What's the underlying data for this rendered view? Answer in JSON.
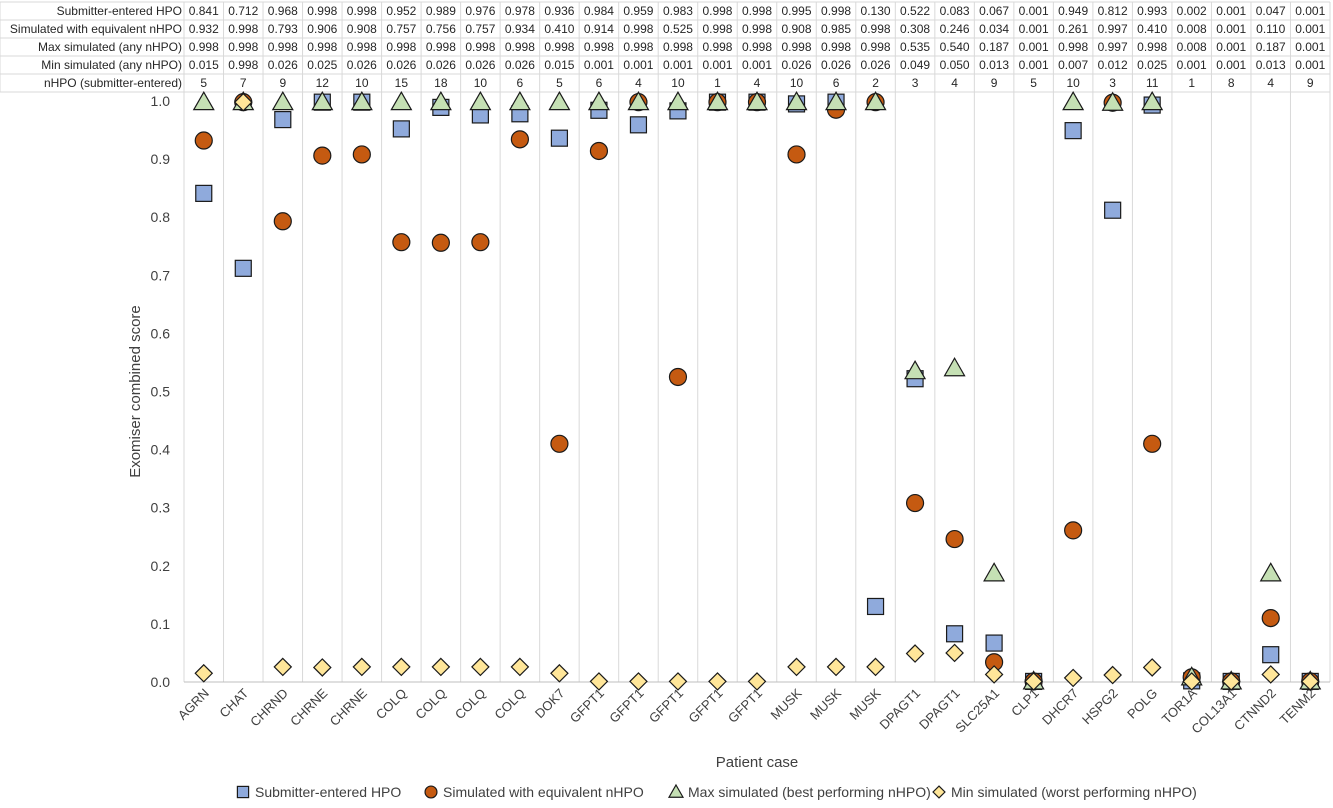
{
  "chart_data": {
    "type": "scatter",
    "xlabel": "Patient case",
    "ylabel": "Exomiser combined score",
    "ylim": [
      0,
      1
    ],
    "yticks": [
      "0.0",
      "0.1",
      "0.2",
      "0.3",
      "0.4",
      "0.5",
      "0.6",
      "0.7",
      "0.8",
      "0.9",
      "1.0"
    ],
    "grid": "vertical gridlines between categories, rows of data table",
    "legend_placement": "bottom",
    "categories": [
      "AGRN",
      "CHAT",
      "CHRND",
      "CHRNE",
      "CHRNE",
      "COLQ",
      "COLQ",
      "COLQ",
      "COLQ",
      "DOK7",
      "GFPT1",
      "GFPT1",
      "GFPT1",
      "GFPT1",
      "GFPT1",
      "MUSK",
      "MUSK",
      "MUSK",
      "DPAGT1",
      "DPAGT1",
      "SLC25A1",
      "CLP1",
      "DHCR7",
      "HSPG2",
      "POLG",
      "TOR1A",
      "COL13A1",
      "CTNND2",
      "TENM2"
    ],
    "series": [
      {
        "name": "Submitter-entered HPO",
        "legend_label": "Submitter-entered HPO",
        "marker": "square",
        "color": "#8faadc",
        "values": [
          "0.841",
          "0.712",
          "0.968",
          "0.998",
          "0.998",
          "0.952",
          "0.989",
          "0.976",
          "0.978",
          "0.936",
          "0.984",
          "0.959",
          "0.983",
          "0.998",
          "0.998",
          "0.995",
          "0.998",
          "0.130",
          "0.522",
          "0.083",
          "0.067",
          "0.001",
          "0.949",
          "0.812",
          "0.993",
          "0.002",
          "0.001",
          "0.047",
          "0.001"
        ]
      },
      {
        "name": "Simulated with equivalent nHPO",
        "legend_label": "Simulated with equivalent nHPO",
        "marker": "circle",
        "color": "#c55a11",
        "values": [
          "0.932",
          "0.998",
          "0.793",
          "0.906",
          "0.908",
          "0.757",
          "0.756",
          "0.757",
          "0.934",
          "0.410",
          "0.914",
          "0.998",
          "0.525",
          "0.998",
          "0.998",
          "0.908",
          "0.985",
          "0.998",
          "0.308",
          "0.246",
          "0.034",
          "0.001",
          "0.261",
          "0.997",
          "0.410",
          "0.008",
          "0.001",
          "0.110",
          "0.001"
        ]
      },
      {
        "name": "Max simulated (any nHPO)",
        "legend_label": "Max simulated (best performing nHPO)",
        "marker": "triangle",
        "color": "#c5e0b4",
        "values": [
          "0.998",
          "0.998",
          "0.998",
          "0.998",
          "0.998",
          "0.998",
          "0.998",
          "0.998",
          "0.998",
          "0.998",
          "0.998",
          "0.998",
          "0.998",
          "0.998",
          "0.998",
          "0.998",
          "0.998",
          "0.998",
          "0.535",
          "0.540",
          "0.187",
          "0.001",
          "0.998",
          "0.997",
          "0.998",
          "0.008",
          "0.001",
          "0.187",
          "0.001"
        ]
      },
      {
        "name": "Min simulated (any nHPO)",
        "legend_label": "Min simulated (worst performing nHPO)",
        "marker": "diamond",
        "color": "#ffe699",
        "values": [
          "0.015",
          "0.998",
          "0.026",
          "0.025",
          "0.026",
          "0.026",
          "0.026",
          "0.026",
          "0.026",
          "0.015",
          "0.001",
          "0.001",
          "0.001",
          "0.001",
          "0.001",
          "0.026",
          "0.026",
          "0.026",
          "0.049",
          "0.050",
          "0.013",
          "0.001",
          "0.007",
          "0.012",
          "0.025",
          "0.001",
          "0.001",
          "0.013",
          "0.001"
        ]
      }
    ],
    "table_extra_row": {
      "name": "nHPO (submitter-entered)",
      "values": [
        "5",
        "7",
        "9",
        "12",
        "10",
        "15",
        "18",
        "10",
        "6",
        "5",
        "6",
        "4",
        "10",
        "1",
        "4",
        "10",
        "6",
        "2",
        "3",
        "4",
        "9",
        "5",
        "10",
        "3",
        "11",
        "1",
        "8",
        "4",
        "9"
      ]
    }
  }
}
